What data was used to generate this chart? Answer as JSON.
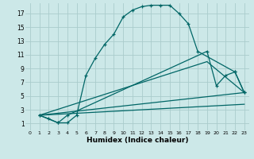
{
  "xlabel": "Humidex (Indice chaleur)",
  "bg_color": "#cce8e8",
  "grid_color": "#aacccc",
  "line_color": "#006666",
  "xlim": [
    -0.5,
    23.5
  ],
  "ylim": [
    0,
    18.5
  ],
  "xticks": [
    0,
    1,
    2,
    3,
    4,
    5,
    6,
    7,
    8,
    9,
    10,
    11,
    12,
    13,
    14,
    15,
    16,
    17,
    18,
    19,
    20,
    21,
    22,
    23
  ],
  "yticks": [
    1,
    3,
    5,
    7,
    9,
    11,
    13,
    15,
    17
  ],
  "line1_x": [
    1,
    2,
    3,
    4,
    5,
    6,
    7,
    8,
    9,
    10,
    11,
    12,
    13,
    14,
    15,
    16,
    17,
    18,
    22,
    23
  ],
  "line1_y": [
    2.2,
    1.7,
    1.1,
    1.1,
    2.2,
    8.0,
    10.5,
    12.5,
    14.0,
    16.5,
    17.5,
    18.0,
    18.2,
    18.2,
    18.2,
    17.0,
    15.5,
    11.5,
    8.5,
    5.5
  ],
  "line2_x": [
    1,
    3,
    4,
    19,
    20,
    21,
    22,
    23
  ],
  "line2_y": [
    2.2,
    1.1,
    2.2,
    11.5,
    6.5,
    8.0,
    8.5,
    5.5
  ],
  "line3_x": [
    1,
    19,
    23
  ],
  "line3_y": [
    2.2,
    10.0,
    5.5
  ],
  "line4_x": [
    1,
    23
  ],
  "line4_y": [
    2.2,
    5.5
  ],
  "line5_x": [
    1,
    23
  ],
  "line5_y": [
    2.2,
    3.8
  ]
}
